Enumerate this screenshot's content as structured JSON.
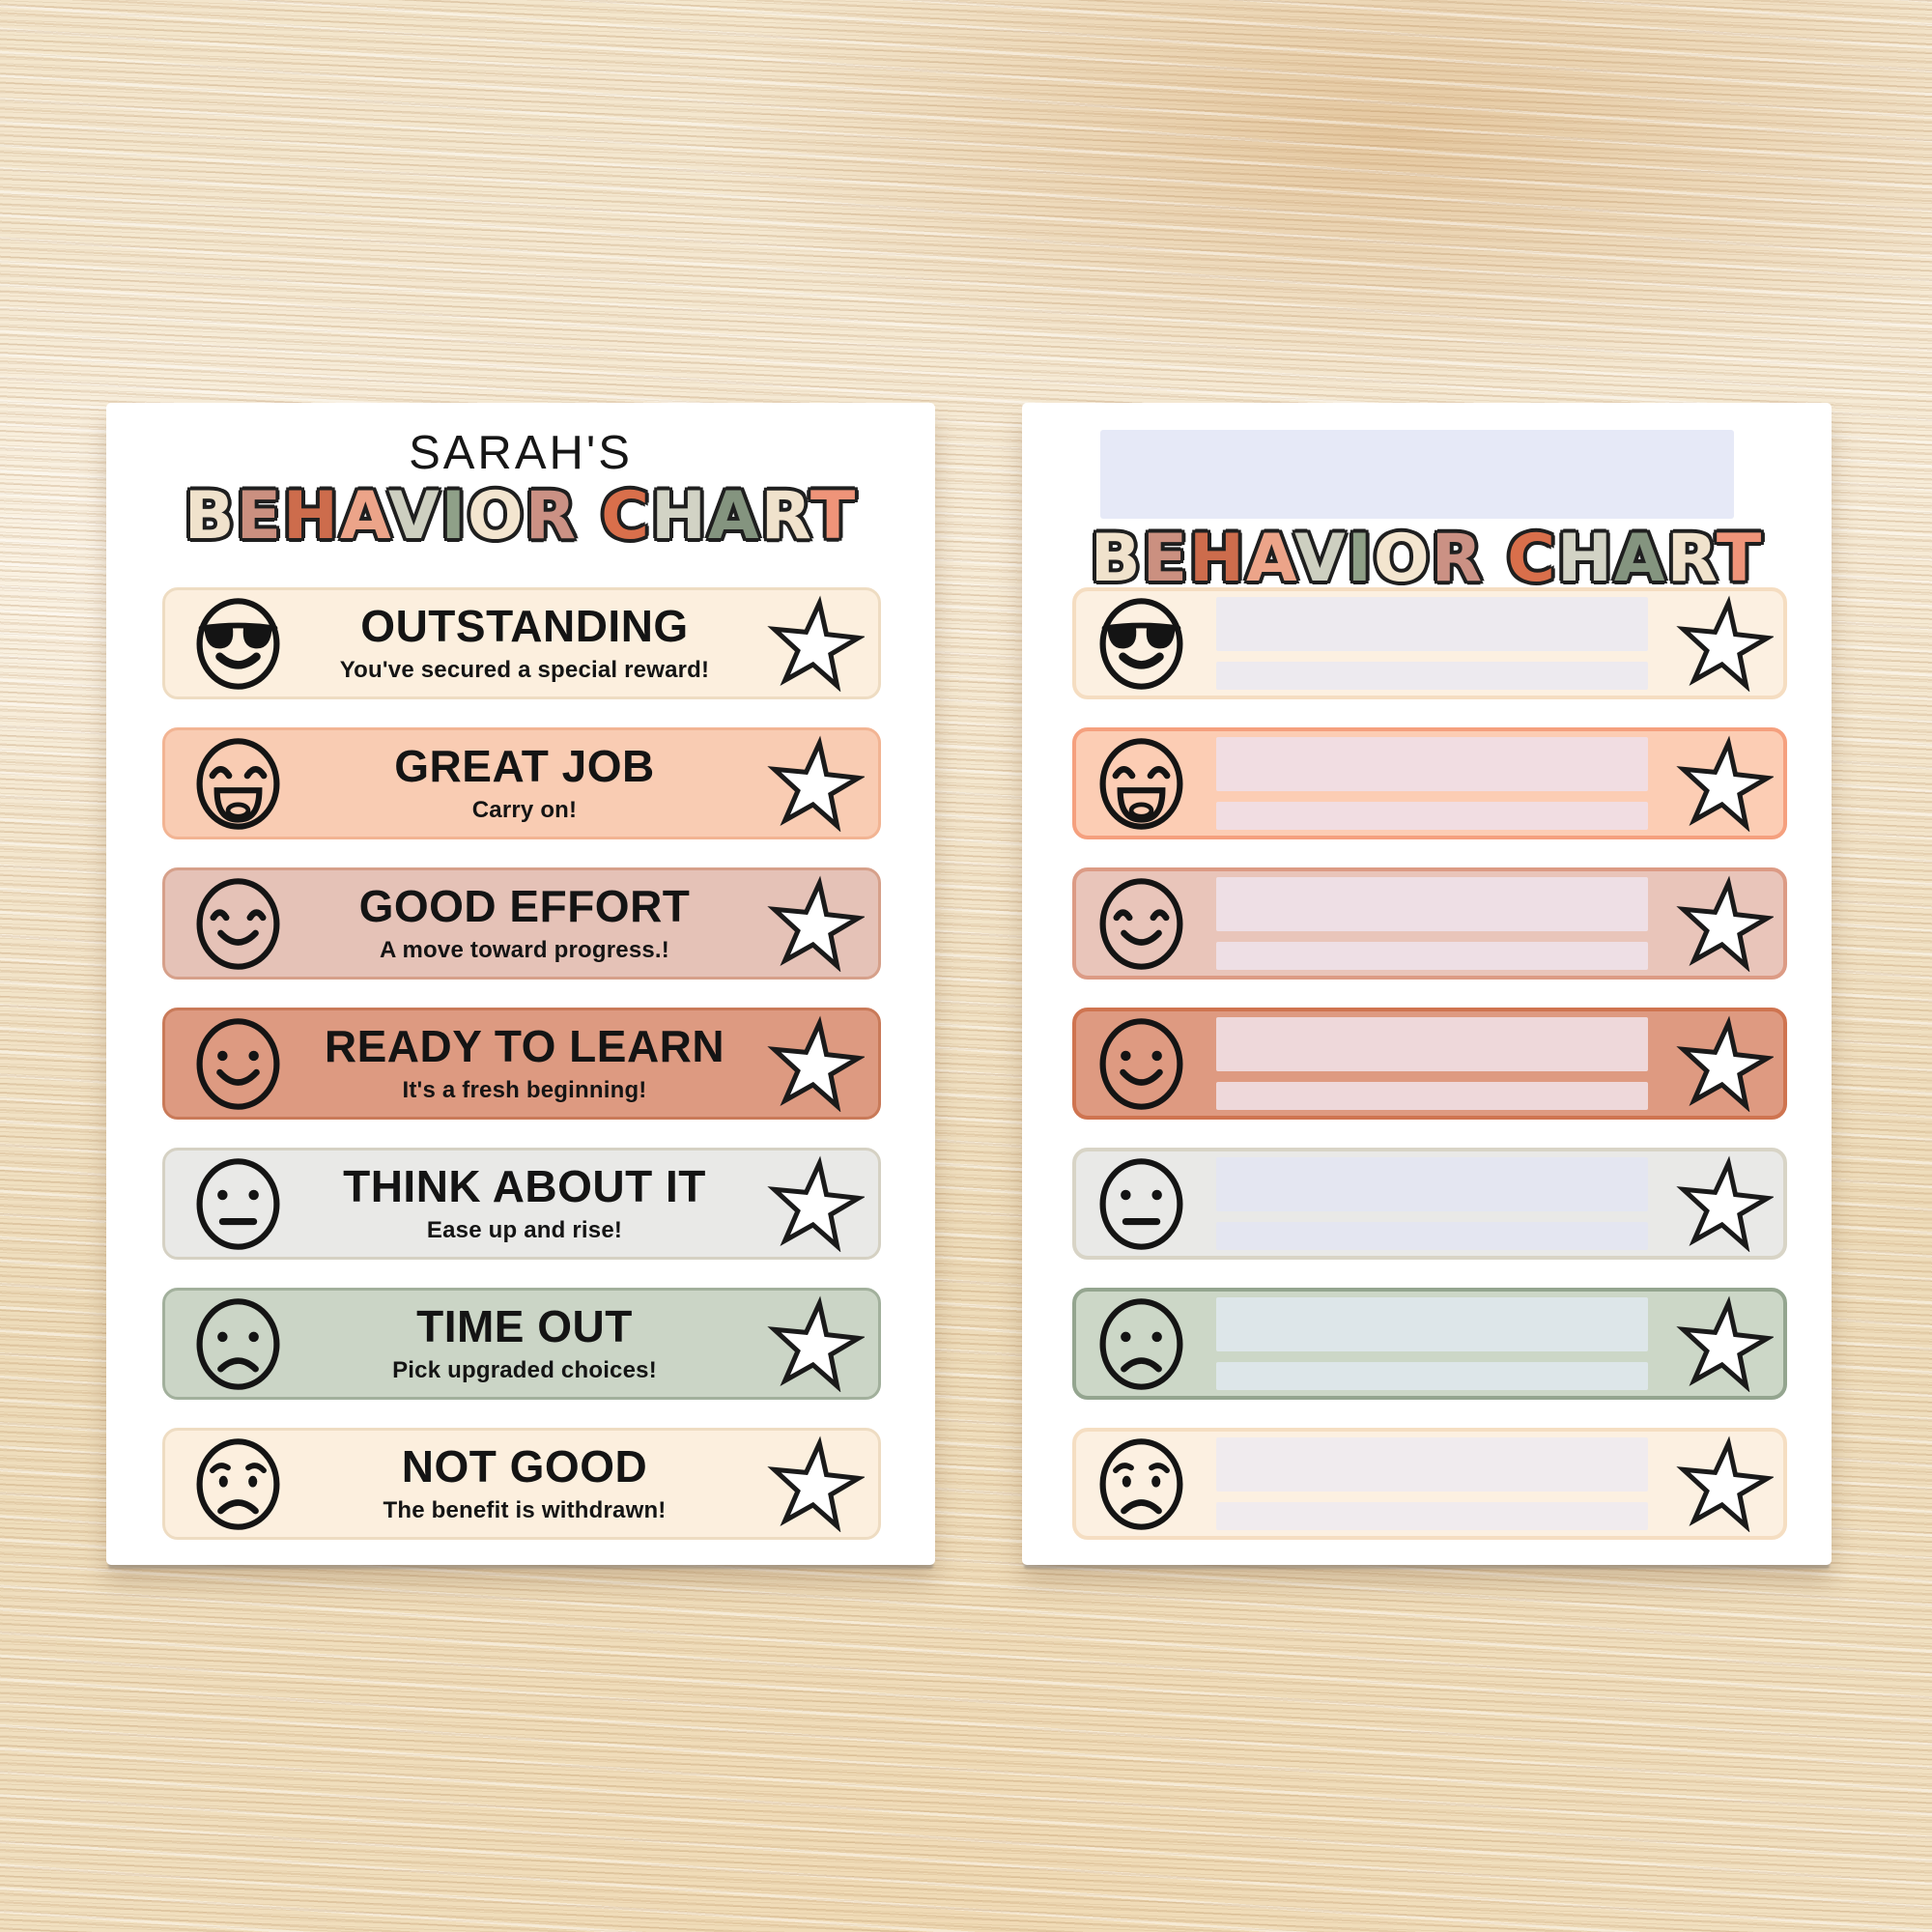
{
  "background": {
    "surface": "light-wood-table"
  },
  "title_letters": [
    {
      "ch": "B",
      "color": "#f0e2cc"
    },
    {
      "ch": "E",
      "color": "#cb9080"
    },
    {
      "ch": "H",
      "color": "#cd6c4c"
    },
    {
      "ch": "A",
      "color": "#eca489"
    },
    {
      "ch": "V",
      "color": "#cdcfc0"
    },
    {
      "ch": "I",
      "color": "#8fa088"
    },
    {
      "ch": "O",
      "color": "#f3e5cf"
    },
    {
      "ch": "R",
      "color": "#cb9184"
    },
    {
      "ch": " ",
      "color": ""
    },
    {
      "ch": "C",
      "color": "#d96f4b"
    },
    {
      "ch": "H",
      "color": "#d2d3c5"
    },
    {
      "ch": "A",
      "color": "#84947f"
    },
    {
      "ch": "R",
      "color": "#f0e2cc"
    },
    {
      "ch": "T",
      "color": "#ef9479"
    }
  ],
  "left_card": {
    "owner_title": "SARAH'S",
    "chart_title": "BEHAVIOR CHART",
    "rows": [
      {
        "emoji": "cool-face-sunglasses",
        "title": "OUTSTANDING",
        "subtitle": "You've secured a special reward!",
        "bg": "#fcefde",
        "border": "#eedcc2"
      },
      {
        "emoji": "laughing-face",
        "title": "GREAT JOB",
        "subtitle": "Carry on!",
        "bg": "#f9ccb3",
        "border": "#f2b493"
      },
      {
        "emoji": "content-face",
        "title": "GOOD EFFORT",
        "subtitle": "A move toward progress.!",
        "bg": "#e5c2b7",
        "border": "#d6a08a"
      },
      {
        "emoji": "smiley-face",
        "title": "READY TO LEARN",
        "subtitle": "It's a fresh beginning!",
        "bg": "#dd9a81",
        "border": "#c97a59"
      },
      {
        "emoji": "neutral-face",
        "title": "THINK ABOUT IT",
        "subtitle": "Ease up and rise!",
        "bg": "#e9e9e7",
        "border": "#d5d1c3"
      },
      {
        "emoji": "sad-face",
        "title": "TIME OUT",
        "subtitle": "Pick upgraded choices!",
        "bg": "#cbd5c6",
        "border": "#a2b09c"
      },
      {
        "emoji": "worried-face",
        "title": "NOT GOOD",
        "subtitle": "The benefit is withdrawn!",
        "bg": "#fcefde",
        "border": "#eedcc2"
      }
    ]
  },
  "right_card": {
    "chart_title": "BEHAVIOR CHART",
    "name_field_color": "#e6e9f7",
    "rows": [
      {
        "emoji": "cool-face-sunglasses",
        "bg": "#fcf0e1",
        "border": "#f5ddc1",
        "bar": "#edeaef"
      },
      {
        "emoji": "laughing-face",
        "bg": "#fccdb4",
        "border": "#f5a07e",
        "bar": "#f1dde2"
      },
      {
        "emoji": "content-face",
        "bg": "#e9c5ba",
        "border": "#dc9b85",
        "bar": "#eedfe5"
      },
      {
        "emoji": "smiley-face",
        "bg": "#de9a81",
        "border": "#cf7450",
        "bar": "#eed8da"
      },
      {
        "emoji": "neutral-face",
        "bg": "#e9e9e7",
        "border": "#d8d4c6",
        "bar": "#e4e6f1"
      },
      {
        "emoji": "sad-face",
        "bg": "#ccd7c7",
        "border": "#94a58f",
        "bar": "#dde6e9"
      },
      {
        "emoji": "worried-face",
        "bg": "#fcf0e1",
        "border": "#f5dec2",
        "bar": "#f0ebee"
      }
    ]
  }
}
